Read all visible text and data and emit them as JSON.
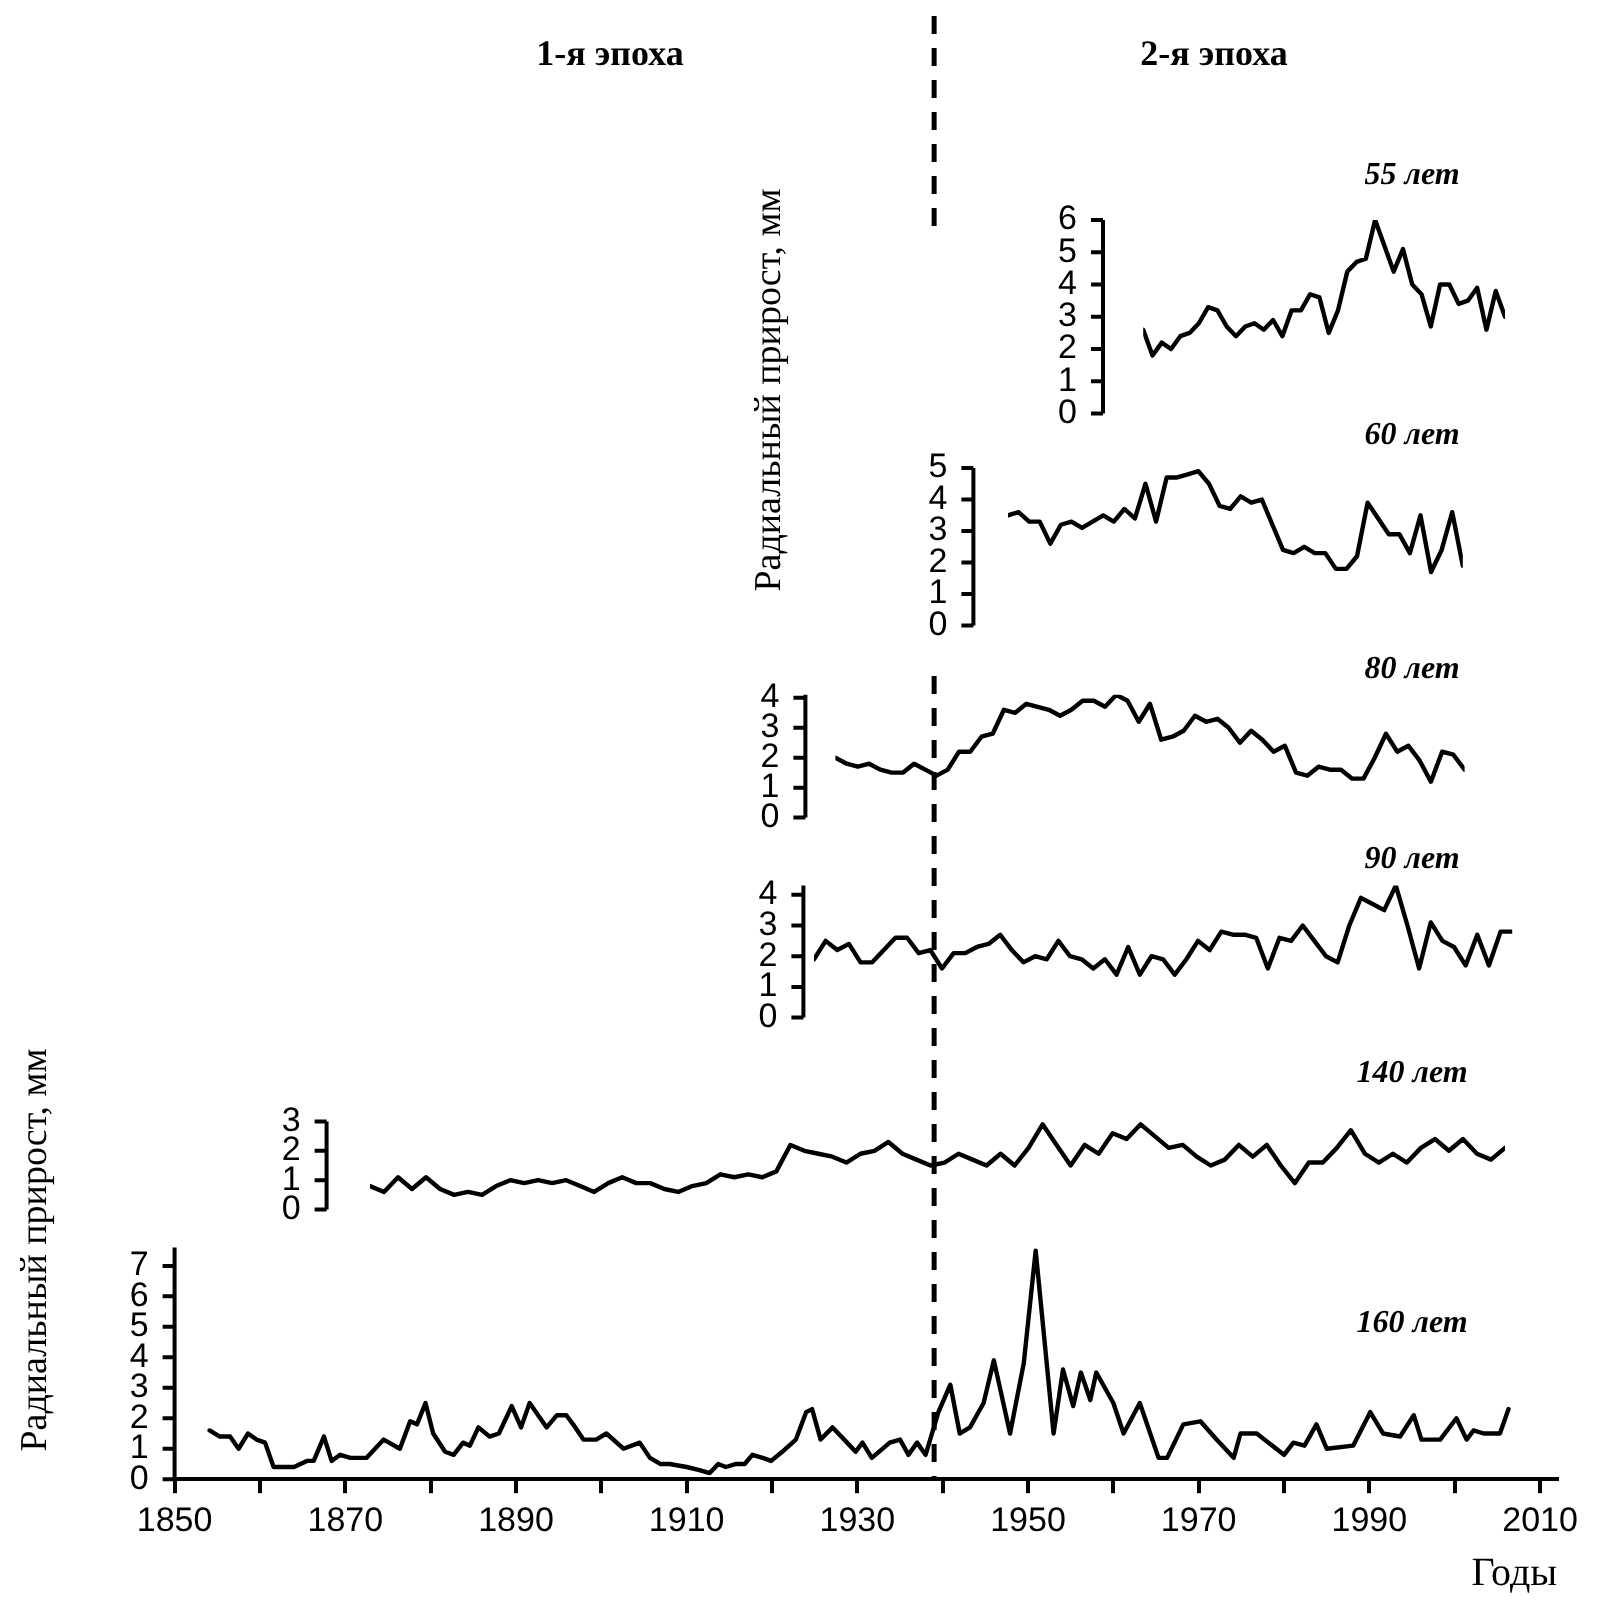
{
  "chart_data": [
    {
      "type": "line",
      "title": "55 лет",
      "ylabel": "Радиальный прирост, мм",
      "color": "#000000",
      "ylim": [
        0,
        6
      ],
      "yticks": [
        0,
        1,
        2,
        3,
        4,
        5,
        6
      ],
      "tick_labels": "y",
      "annotations": [
        "1-я эпоха",
        "2-я эпоха"
      ],
      "categories": [
        null,
        null,
        null,
        null,
        null,
        null,
        null,
        null,
        null,
        null,
        null,
        null,
        null,
        null,
        null,
        null,
        null,
        null,
        null,
        null,
        null,
        null,
        null,
        null,
        null,
        null,
        null,
        null,
        null,
        null,
        null,
        null,
        null,
        null,
        null,
        null,
        null,
        null,
        null,
        null
      ],
      "values": [
        2.6,
        1.8,
        2.2,
        2.0,
        2.4,
        2.5,
        2.8,
        3.3,
        3.2,
        2.7,
        2.4,
        2.7,
        2.8,
        2.6,
        2.9,
        2.4,
        3.2,
        3.2,
        3.7,
        3.6,
        2.5,
        3.2,
        4.4,
        4.7,
        4.8,
        6.0,
        5.2,
        4.4,
        5.1,
        4.0,
        3.7,
        2.7,
        4.0,
        4.0,
        3.4,
        3.5,
        3.9,
        2.6,
        3.8,
        3.0
      ]
    },
    {
      "type": "line",
      "title": "60 лет",
      "color": "#000000",
      "ylim": [
        0,
        5
      ],
      "yticks": [
        0,
        1,
        2,
        3,
        4,
        5
      ],
      "tick_labels": "y",
      "categories": [
        null,
        null,
        null,
        null,
        null,
        null,
        null,
        null,
        null,
        null,
        null,
        null,
        null,
        null,
        null,
        null,
        null,
        null,
        null,
        null,
        null,
        null,
        null,
        null,
        null,
        null,
        null,
        null,
        null,
        null,
        null,
        null,
        null,
        null,
        null,
        null,
        null,
        null,
        null,
        null,
        null,
        null,
        null,
        null
      ],
      "values": [
        3.5,
        3.6,
        3.3,
        3.3,
        2.6,
        3.2,
        3.3,
        3.1,
        3.3,
        3.5,
        3.3,
        3.7,
        3.4,
        4.5,
        3.3,
        4.7,
        4.7,
        4.8,
        4.9,
        4.5,
        3.8,
        3.7,
        4.1,
        3.9,
        4.0,
        3.2,
        2.4,
        2.3,
        2.5,
        2.3,
        2.3,
        1.8,
        1.8,
        2.2,
        3.9,
        3.4,
        2.9,
        2.9,
        2.3,
        3.5,
        1.7,
        2.4,
        3.6,
        1.9
      ]
    },
    {
      "type": "line",
      "title": "80 лет",
      "color": "#000000",
      "ylim": [
        0,
        4.1
      ],
      "yticks": [
        0,
        1,
        2,
        3,
        4
      ],
      "tick_labels": "y",
      "categories": [
        null,
        null,
        null,
        null,
        null,
        null,
        null,
        null,
        null,
        null,
        null,
        null,
        null,
        null,
        null,
        null,
        null,
        null,
        null,
        null,
        null,
        null,
        null,
        null,
        null,
        null,
        null,
        null,
        null,
        null,
        null,
        null,
        null,
        null,
        null,
        null,
        null,
        null,
        null,
        null,
        null,
        null,
        null,
        null,
        null,
        null,
        null,
        null,
        null,
        null,
        null,
        null,
        null,
        null,
        null,
        null,
        null
      ],
      "values": [
        2.0,
        1.8,
        1.7,
        1.8,
        1.6,
        1.5,
        1.5,
        1.8,
        1.6,
        1.4,
        1.6,
        2.2,
        2.2,
        2.7,
        2.8,
        3.6,
        3.5,
        3.8,
        3.7,
        3.6,
        3.4,
        3.6,
        3.9,
        3.9,
        3.7,
        4.1,
        3.9,
        3.2,
        3.8,
        2.6,
        2.7,
        2.9,
        3.4,
        3.2,
        3.3,
        3.0,
        2.5,
        2.9,
        2.6,
        2.2,
        2.4,
        1.5,
        1.4,
        1.7,
        1.6,
        1.6,
        1.3,
        1.3,
        2.0,
        2.8,
        2.2,
        2.4,
        1.9,
        1.2,
        2.2,
        2.1,
        1.6
      ]
    },
    {
      "type": "line",
      "title": "90 лет",
      "color": "#000000",
      "ylim": [
        0,
        4.3
      ],
      "yticks": [
        0,
        1,
        2,
        3,
        4
      ],
      "tick_labels": "y",
      "categories": [
        null,
        null,
        null,
        null,
        null,
        null,
        null,
        null,
        null,
        null,
        null,
        null,
        null,
        null,
        null,
        null,
        null,
        null,
        null,
        null,
        null,
        null,
        null,
        null,
        null,
        null,
        null,
        null,
        null,
        null,
        null,
        null,
        null,
        null,
        null,
        null,
        null,
        null,
        null,
        null,
        null,
        null,
        null,
        null,
        null,
        null,
        null,
        null,
        null,
        null,
        null,
        null,
        null,
        null,
        null,
        null,
        null,
        null,
        null,
        null,
        null
      ],
      "values": [
        1.9,
        2.5,
        2.2,
        2.4,
        1.8,
        1.8,
        2.2,
        2.6,
        2.6,
        2.1,
        2.2,
        1.6,
        2.1,
        2.1,
        2.3,
        2.4,
        2.7,
        2.2,
        1.8,
        2.0,
        1.9,
        2.5,
        2.0,
        1.9,
        1.6,
        1.9,
        1.4,
        2.3,
        1.4,
        2.0,
        1.9,
        1.4,
        1.9,
        2.5,
        2.2,
        2.8,
        2.7,
        2.7,
        2.6,
        1.6,
        2.6,
        2.5,
        3.0,
        2.5,
        2.0,
        1.8,
        3.0,
        3.9,
        3.7,
        3.5,
        4.3,
        3.0,
        1.6,
        3.1,
        2.5,
        2.3,
        1.7,
        2.7,
        1.7,
        2.8,
        2.8
      ]
    },
    {
      "type": "line",
      "title": "140 лет",
      "color": "#000000",
      "ylim": [
        0,
        3
      ],
      "yticks": [
        0,
        1,
        2,
        3
      ],
      "tick_labels": "y",
      "categories": [
        null,
        null,
        null,
        null,
        null,
        null,
        null,
        null,
        null,
        null,
        null,
        null,
        null,
        null,
        null,
        null,
        null,
        null,
        null,
        null,
        null,
        null,
        null,
        null,
        null,
        null,
        null,
        null,
        null,
        null,
        null,
        null,
        null,
        null,
        null,
        null,
        null,
        null,
        null,
        null,
        null,
        null,
        null,
        null,
        null,
        null,
        null,
        null,
        null,
        null,
        null,
        null,
        null,
        null,
        null,
        null,
        null,
        null,
        null,
        null,
        null,
        null,
        null,
        null,
        null,
        null,
        null,
        null,
        null,
        null,
        null,
        null,
        null,
        null,
        null,
        null,
        null,
        null,
        null,
        null,
        null,
        null
      ],
      "values": [
        0.8,
        0.6,
        1.1,
        0.7,
        1.1,
        0.7,
        0.5,
        0.6,
        0.5,
        0.8,
        1.0,
        0.9,
        1.0,
        0.9,
        1.0,
        0.8,
        0.6,
        0.9,
        1.1,
        0.9,
        0.9,
        0.7,
        0.6,
        0.8,
        0.9,
        1.2,
        1.1,
        1.2,
        1.1,
        1.3,
        2.2,
        2.0,
        1.9,
        1.8,
        1.6,
        1.9,
        2.0,
        2.3,
        1.9,
        1.7,
        1.5,
        1.6,
        1.9,
        1.7,
        1.5,
        1.9,
        1.5,
        2.1,
        2.9,
        2.2,
        1.5,
        2.2,
        1.9,
        2.6,
        2.4,
        2.9,
        2.5,
        2.1,
        2.2,
        1.8,
        1.5,
        1.7,
        2.2,
        1.8,
        2.2,
        1.5,
        0.9,
        1.6,
        1.6,
        2.1,
        2.7,
        1.9,
        1.6,
        1.9,
        1.6,
        2.1,
        2.4,
        2.0,
        2.4,
        1.9,
        1.7,
        2.1
      ]
    },
    {
      "type": "line",
      "title": "160 лет",
      "ylabel": "Радиальный прирост, мм",
      "xlabel": "Годы",
      "color": "#000000",
      "xlim": [
        1850,
        2012
      ],
      "ylim": [
        0,
        7.6
      ],
      "yticks": [
        0,
        1,
        2,
        3,
        4,
        5,
        6,
        7
      ],
      "xticks": [
        1850,
        {
          "value": 1860,
          "label": null
        },
        1870,
        {
          "value": 1880,
          "label": null
        },
        1890,
        {
          "value": 1900,
          "label": null
        },
        1910,
        {
          "value": 1920,
          "label": null
        },
        1930,
        {
          "value": 1940,
          "label": null
        },
        1950,
        {
          "value": 1960,
          "label": null
        },
        1970,
        {
          "value": 1980,
          "label": null
        },
        1990,
        {
          "value": 2000,
          "label": null
        },
        2010
      ],
      "ref_lines": [
        {
          "axis": "x",
          "value": 1939
        }
      ],
      "x": [
        1854.1,
        1855.3,
        1856.5,
        1857.5,
        1858.6,
        1859.6,
        1860.6,
        1861.6,
        1864,
        1865.5,
        1866.3,
        1867.5,
        1868.4,
        1869.4,
        1870.6,
        1872.5,
        1874.5,
        1876.4,
        1877.6,
        1878.4,
        1879.4,
        1880.3,
        1881.7,
        1882.7,
        1883.8,
        1884.6,
        1885.6,
        1886.9,
        1888,
        1889.5,
        1890.6,
        1891.6,
        1893.6,
        1894.8,
        1895.9,
        1896.7,
        1897.9,
        1899.4,
        1900.6,
        1902.6,
        1904.5,
        1905.7,
        1906.9,
        1908,
        1910,
        1911.5,
        1912.7,
        1913.7,
        1914.6,
        1915.8,
        1916.8,
        1917.7,
        1918.9,
        1919.9,
        1921.2,
        1922.8,
        1924,
        1924.7,
        1925.7,
        1927.1,
        1928.8,
        1929.8,
        1930.6,
        1931.7,
        1933.8,
        1935,
        1936,
        1937,
        1938,
        1939.5,
        1940.9,
        1942,
        1943.2,
        1944.8,
        1946,
        1947.9,
        1949.5,
        1950.9,
        1953,
        1954.1,
        1955.3,
        1956.2,
        1957.3,
        1958,
        1960,
        1961.2,
        1963.1,
        1965.3,
        1966.3,
        1968.2,
        1970.2,
        1972.1,
        1974.1,
        1974.9,
        1976.8,
        1980,
        1981.1,
        1982.4,
        1983.8,
        1985,
        1988.1,
        1990.1,
        1991.6,
        1993.6,
        1995.2,
        1996.1,
        1998.3,
        2000.2,
        2001.4,
        2002.2,
        2003.4,
        2005.3,
        2006.3
      ],
      "values": [
        1.6,
        1.4,
        1.4,
        1.0,
        1.5,
        1.3,
        1.2,
        0.4,
        0.4,
        0.6,
        0.6,
        1.4,
        0.6,
        0.8,
        0.7,
        0.7,
        1.3,
        1.0,
        1.9,
        1.8,
        2.5,
        1.5,
        0.9,
        0.8,
        1.2,
        1.1,
        1.7,
        1.4,
        1.5,
        2.4,
        1.7,
        2.5,
        1.7,
        2.1,
        2.1,
        1.8,
        1.3,
        1.3,
        1.5,
        1.0,
        1.2,
        0.7,
        0.5,
        0.5,
        0.4,
        0.3,
        0.2,
        0.5,
        0.4,
        0.5,
        0.5,
        0.8,
        0.7,
        0.6,
        0.9,
        1.3,
        2.2,
        2.3,
        1.3,
        1.7,
        1.2,
        0.9,
        1.2,
        0.7,
        1.2,
        1.3,
        0.8,
        1.2,
        0.8,
        2.2,
        3.1,
        1.5,
        1.7,
        2.5,
        3.9,
        1.5,
        3.8,
        7.5,
        1.5,
        3.6,
        2.4,
        3.5,
        2.6,
        3.5,
        2.5,
        1.5,
        2.5,
        0.7,
        0.7,
        1.8,
        1.9,
        1.3,
        0.7,
        1.5,
        1.5,
        0.8,
        1.2,
        1.1,
        1.8,
        1.0,
        1.1,
        2.2,
        1.5,
        1.4,
        2.1,
        1.3,
        1.3,
        2.0,
        1.3,
        1.6,
        1.5,
        1.5,
        2.3
      ]
    }
  ]
}
